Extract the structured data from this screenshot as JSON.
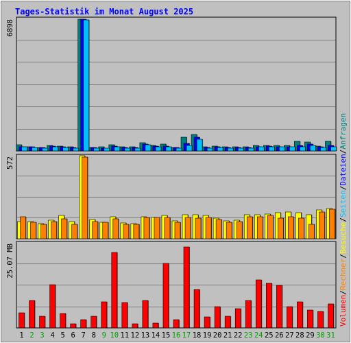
{
  "chart_data": {
    "type": "bar",
    "title": "Tages-Statistik im Monat August 2025",
    "categories": [
      "1",
      "2",
      "3",
      "4",
      "5",
      "6",
      "7",
      "8",
      "9",
      "10",
      "11",
      "12",
      "13",
      "14",
      "15",
      "16",
      "17",
      "18",
      "19",
      "20",
      "21",
      "22",
      "23",
      "24",
      "25",
      "26",
      "27",
      "28",
      "29",
      "30",
      "31"
    ],
    "weekend_days": [
      "2",
      "3",
      "9",
      "10",
      "16",
      "17",
      "23",
      "24",
      "30",
      "31"
    ],
    "colors": {
      "anfragen": "#008080",
      "dateien": "#0000ff",
      "seiten": "#00c0ff",
      "besuche": "#ffff00",
      "rechner": "#ff8000",
      "volumen": "#ff0000",
      "weekday_tick": "#000000",
      "weekend_tick": "#00a000"
    },
    "legend": [
      {
        "key": "volumen",
        "label": "Volumen"
      },
      {
        "key": "rechner",
        "label": "Rechner"
      },
      {
        "key": "besuche",
        "label": "Besuche"
      },
      {
        "key": "seiten",
        "label": "Seiten"
      },
      {
        "key": "dateien",
        "label": "Dateien"
      },
      {
        "key": "anfragen",
        "label": "Anfragen"
      }
    ],
    "panels": [
      {
        "id": "hits",
        "ymax_label": "6898",
        "ymax": 6898,
        "series": [
          {
            "name": "Anfragen",
            "values": [
              310,
              230,
              190,
              270,
              250,
              200,
              6870,
              190,
              200,
              320,
              210,
              200,
              440,
              290,
              340,
              190,
              700,
              840,
              210,
              250,
              210,
              200,
              210,
              270,
              300,
              280,
              270,
              500,
              480,
              250,
              490
            ]
          },
          {
            "name": "Dateien",
            "values": [
              230,
              200,
              170,
              240,
              200,
              180,
              6850,
              170,
              160,
              250,
              180,
              170,
              350,
              250,
              260,
              170,
              400,
              710,
              180,
              200,
              170,
              180,
              170,
              230,
              240,
              230,
              230,
              300,
              360,
              200,
              280
            ]
          },
          {
            "name": "Seiten",
            "values": [
              210,
              180,
              160,
              210,
              180,
              160,
              6820,
              150,
              150,
              210,
              160,
              150,
              310,
              200,
              230,
              150,
              300,
              600,
              160,
              180,
              150,
              160,
              160,
              200,
              210,
              200,
              200,
              230,
              300,
              180,
              210
            ]
          }
        ]
      },
      {
        "id": "visits",
        "ymax_label": "572",
        "ymax": 572,
        "series": [
          {
            "name": "Besuche",
            "values": [
              118,
              120,
              105,
              128,
              160,
              120,
              572,
              130,
              115,
              150,
              108,
              105,
              150,
              148,
              160,
              122,
              165,
              165,
              160,
              142,
              125,
              128,
              165,
              165,
              168,
              178,
              185,
              178,
              165,
              200,
              210
            ]
          },
          {
            "name": "Rechner",
            "values": [
              152,
              113,
              98,
              118,
              138,
              98,
              562,
              120,
              112,
              138,
              98,
              98,
              148,
              148,
              148,
              115,
              148,
              140,
              145,
              130,
              112,
              118,
              152,
              152,
              160,
              142,
              152,
              140,
              98,
              182,
              202
            ]
          }
        ]
      },
      {
        "id": "volume",
        "ymax_label": "25.07 MB",
        "ymax": 25.07,
        "series": [
          {
            "name": "Volumen",
            "values": [
              4.5,
              8.0,
              3.5,
              12.8,
              4.2,
              1.2,
              2.5,
              3.5,
              7.7,
              22.2,
              7.5,
              1.2,
              8.1,
              1.5,
              19.0,
              2.5,
              23.8,
              11.4,
              3.3,
              6.3,
              3.5,
              5.6,
              8.1,
              14.2,
              13.2,
              12.6,
              6.3,
              7.7,
              5.3,
              4.8,
              7.0
            ]
          }
        ]
      }
    ]
  }
}
